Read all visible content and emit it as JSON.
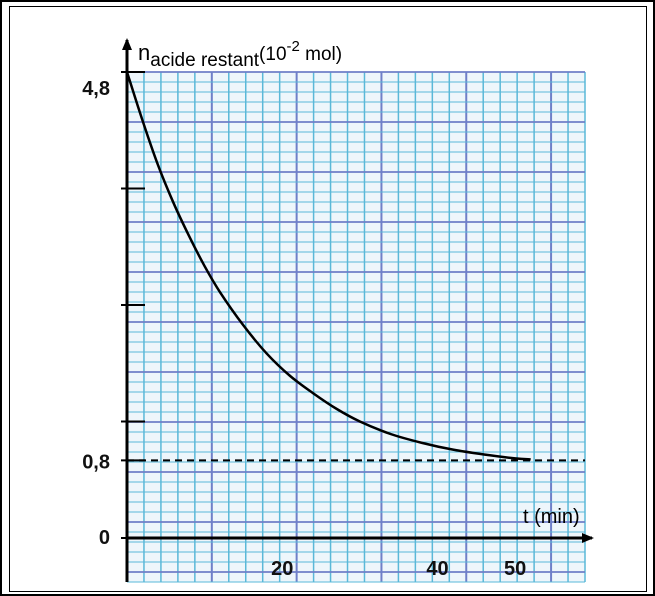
{
  "chart_data": {
    "type": "line",
    "ylabel": {
      "symbol": "n",
      "subscript": "acide restant",
      "unit_open": "(10",
      "unit_exponent": "-2",
      "unit_close": " mol)"
    },
    "xlabel": "t (min)",
    "x_ticks": [
      {
        "value": 20,
        "label": "20"
      },
      {
        "value": 40,
        "label": "40"
      },
      {
        "value": 50,
        "label": "50"
      }
    ],
    "y_ticks": [
      {
        "value": 0,
        "label": "0"
      },
      {
        "value": 0.8,
        "label": "0,8"
      },
      {
        "value": 4.8,
        "label": "4,8"
      }
    ],
    "xlim": [
      0,
      59
    ],
    "ylim": [
      0,
      4.8
    ],
    "grid": true,
    "series": [
      {
        "style": "solid",
        "x": [
          0,
          2,
          4,
          6,
          8,
          10,
          12,
          15,
          18,
          21,
          24,
          27,
          30,
          34,
          38,
          42,
          46,
          50,
          52
        ],
        "y": [
          4.8,
          4.3,
          3.84,
          3.45,
          3.11,
          2.8,
          2.53,
          2.19,
          1.9,
          1.67,
          1.49,
          1.33,
          1.2,
          1.07,
          0.98,
          0.91,
          0.86,
          0.82,
          0.81
        ]
      },
      {
        "style": "dashed",
        "x": [
          0,
          59
        ],
        "y": [
          0.8,
          0.8
        ]
      }
    ],
    "colors": {
      "grid_minor": "#5ab8d8",
      "grid_major": "#6f7fc8",
      "background": "#eef6fb",
      "curve": "#000000"
    }
  }
}
